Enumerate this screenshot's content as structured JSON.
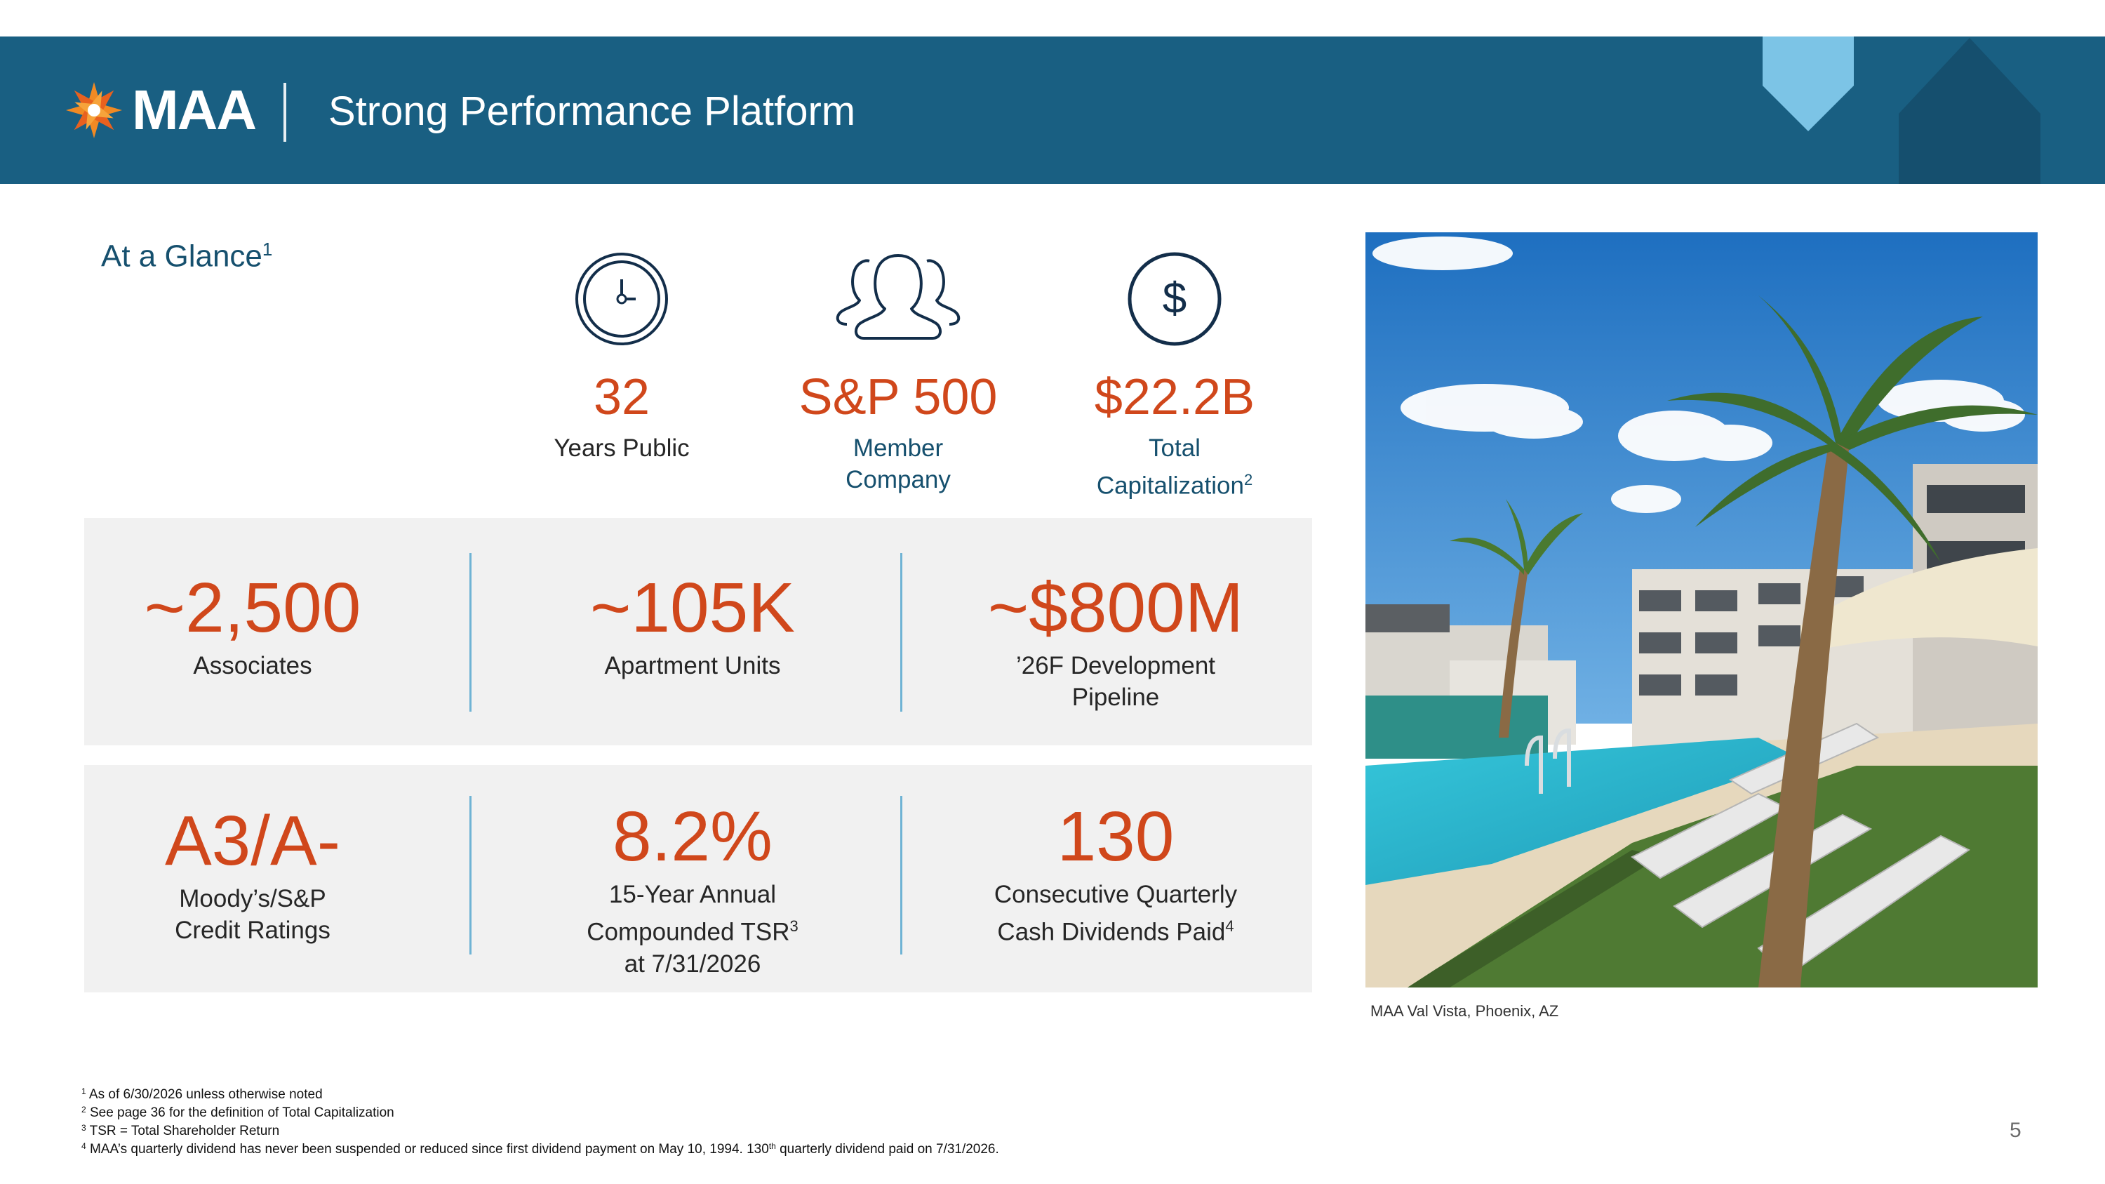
{
  "header": {
    "logo_text": "MAA",
    "title": "Strong Performance Platform"
  },
  "glance": {
    "title": "At a Glance",
    "title_sup": "1"
  },
  "top_metrics": [
    {
      "icon": "clock-icon",
      "value": "32",
      "label_line1": "Years Public",
      "label_line2": "",
      "label_sup": ""
    },
    {
      "icon": "people-icon",
      "value": "S&P 500",
      "label_line1": "Member",
      "label_line2": "Company",
      "label_sup": ""
    },
    {
      "icon": "dollar-icon",
      "value": "$22.2B",
      "label_line1": "Total",
      "label_line2": "Capitalization",
      "label_sup": "2"
    }
  ],
  "panel1": [
    {
      "value": "~2,500",
      "line1": "Associates",
      "line2": ""
    },
    {
      "value": "~105K",
      "line1": "Apartment Units",
      "line2": ""
    },
    {
      "value": "~$800M",
      "line1": "’26F Development",
      "line2": "Pipeline"
    }
  ],
  "panel2": [
    {
      "value": "A3/A-",
      "line1": "Moody’s/S&P",
      "line2": "Credit Ratings",
      "line3": "",
      "sup": ""
    },
    {
      "value": "8.2%",
      "line1": "15-Year Annual",
      "line2": "Compounded TSR",
      "line3": "at 7/31/2026",
      "sup": "3"
    },
    {
      "value": "130",
      "line1": "Consecutive Quarterly",
      "line2": "Cash Dividends Paid",
      "line3": "",
      "sup": "4"
    }
  ],
  "photo": {
    "caption": "MAA Val Vista, Phoenix, AZ"
  },
  "footnotes": [
    {
      "num": "1",
      "text": "As of 6/30/2026 unless otherwise noted"
    },
    {
      "num": "2",
      "text": "See page 36 for the definition of Total Capitalization"
    },
    {
      "num": "3",
      "text": "TSR = Total Shareholder Return"
    },
    {
      "num": "4",
      "text": "MAA’s quarterly dividend has never been suspended or reduced since first dividend payment on May 10, 1994.  130",
      "sup": "th",
      "text2": " quarterly dividend paid on 7/31/2026."
    }
  ],
  "page_number": "5",
  "colors": {
    "header_bg": "#195f82",
    "accent_orange": "#d0471b",
    "navy": "#16506e",
    "panel_bg": "#f1f1f1",
    "divider_blue": "#6fb3d4"
  }
}
